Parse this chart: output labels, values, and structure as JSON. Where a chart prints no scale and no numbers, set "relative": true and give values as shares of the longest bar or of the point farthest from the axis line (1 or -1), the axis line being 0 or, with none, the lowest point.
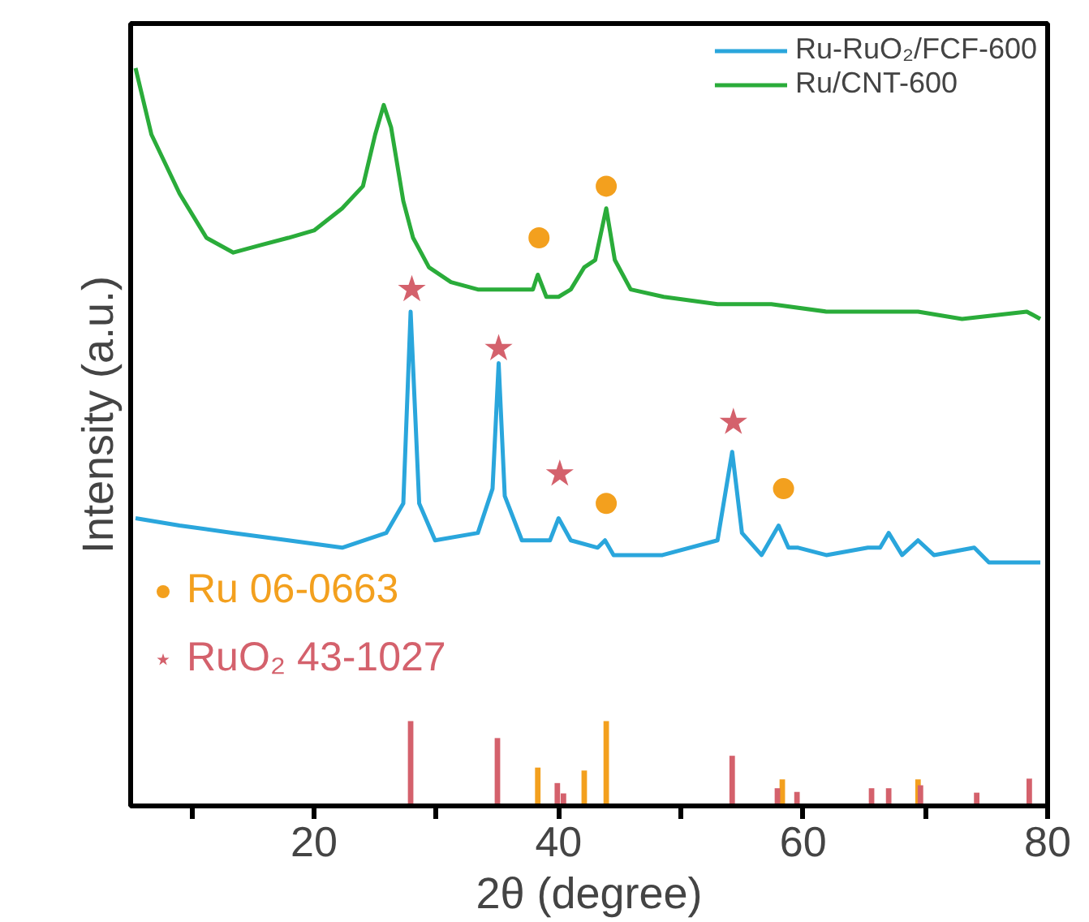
{
  "chart_data": {
    "type": "line",
    "relative": true,
    "xlabel": "2θ (degree)",
    "ylabel": "Intensity (a.u.)",
    "xlim": [
      5,
      80
    ],
    "xticks": [
      {
        "value": 10,
        "label": null
      },
      20,
      {
        "value": 30,
        "label": null
      },
      40,
      {
        "value": 50,
        "label": null
      },
      60,
      {
        "value": 70,
        "label": null
      },
      80
    ],
    "legend": "top right",
    "grid": false,
    "series": [
      {
        "name": "Ru-RuO₂/FCF-600",
        "color": "#2aa6dc",
        "x": [
          5.4,
          9,
          13.4,
          17.9,
          22.3,
          25.9,
          27.3,
          27.9,
          28.6,
          29.9,
          33.4,
          34.6,
          35.1,
          35.6,
          37,
          39.3,
          40,
          41,
          43.2,
          43.8,
          44.5,
          48.5,
          53,
          53.8,
          54.2,
          55,
          56.6,
          58,
          58.8,
          59.6,
          61.9,
          65.3,
          66.3,
          67,
          68.1,
          69.4,
          70.7,
          74,
          75.2,
          79.4
        ],
        "values": [
          0.39,
          0.38,
          0.37,
          0.36,
          0.35,
          0.37,
          0.41,
          0.67,
          0.41,
          0.36,
          0.37,
          0.43,
          0.6,
          0.42,
          0.36,
          0.36,
          0.39,
          0.36,
          0.35,
          0.36,
          0.34,
          0.34,
          0.36,
          0.44,
          0.48,
          0.37,
          0.34,
          0.38,
          0.35,
          0.35,
          0.34,
          0.35,
          0.35,
          0.37,
          0.34,
          0.36,
          0.34,
          0.35,
          0.33,
          0.33
        ]
      },
      {
        "name": "Ru/CNT-600",
        "color": "#2aac3a",
        "x": [
          5.4,
          6.7,
          9,
          11.2,
          13.4,
          15.6,
          17.9,
          20,
          22.3,
          24,
          25,
          25.7,
          26.3,
          27.3,
          28.1,
          29.4,
          31.2,
          33.4,
          37.9,
          38.3,
          39,
          40,
          41,
          42.1,
          43,
          43.9,
          44.6,
          45.9,
          48.6,
          53,
          57.4,
          61.9,
          66.3,
          69.4,
          73,
          78.3,
          79.4
        ],
        "values": [
          1.0,
          0.91,
          0.83,
          0.77,
          0.75,
          0.76,
          0.77,
          0.78,
          0.81,
          0.84,
          0.91,
          0.95,
          0.92,
          0.82,
          0.77,
          0.73,
          0.71,
          0.7,
          0.7,
          0.72,
          0.69,
          0.69,
          0.7,
          0.73,
          0.74,
          0.81,
          0.74,
          0.7,
          0.69,
          0.68,
          0.68,
          0.67,
          0.67,
          0.67,
          0.66,
          0.67,
          0.66
        ]
      },
      {
        "type": "bar",
        "color": "#f3a01e",
        "x": [
          38.3,
          42.1,
          43.9,
          58.3,
          69.4
        ],
        "values": [
          0.052,
          0.048,
          0.115,
          0.036,
          0.036
        ]
      },
      {
        "type": "bar",
        "color": "#d4616c",
        "x": [
          27.9,
          35.0,
          39.9,
          40.4,
          54.2,
          57.9,
          59.5,
          65.6,
          67.0,
          69.6,
          74.2,
          78.5
        ],
        "values": [
          0.115,
          0.092,
          0.031,
          0.017,
          0.068,
          0.024,
          0.019,
          0.024,
          0.024,
          0.028,
          0.018,
          0.037
        ]
      },
      {
        "type": "scatter",
        "name": "Ru 06-0663",
        "marker": "circle",
        "color": "#f3a01e",
        "x": [
          38.4,
          43.9,
          43.9,
          58.4
        ],
        "values": [
          0.77,
          0.84,
          0.41,
          0.43
        ]
      },
      {
        "type": "scatter",
        "name": "RuO₂ 43-1027",
        "marker": "star",
        "color": "#d4616c",
        "x": [
          28.0,
          35.1,
          40.1,
          54.3
        ],
        "values": [
          0.7,
          0.62,
          0.45,
          0.52
        ]
      }
    ]
  }
}
